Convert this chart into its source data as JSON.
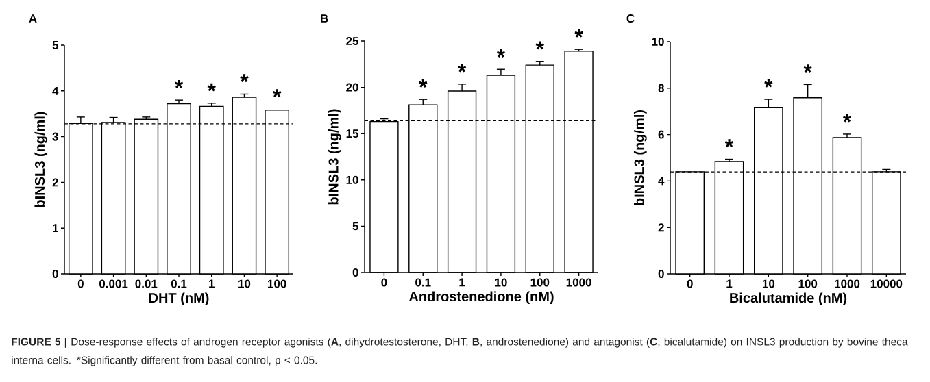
{
  "chart_data": [
    {
      "type": "bar",
      "title": "A",
      "xlabel": "DHT (nM)",
      "ylabel": "bINSL3 (ng/ml)",
      "categories": [
        "0",
        "0.001",
        "0.01",
        "0.1",
        "1",
        "10",
        "100"
      ],
      "values": [
        3.29,
        3.31,
        3.38,
        3.72,
        3.66,
        3.86,
        3.58
      ],
      "errors": [
        0.14,
        0.11,
        0.05,
        0.08,
        0.07,
        0.07,
        null
      ],
      "color": "#ffffff",
      "ylim": [
        0,
        5
      ],
      "yticks": [
        0,
        1,
        2,
        3,
        4,
        5
      ],
      "ref_lines": [
        {
          "axis": "y",
          "value": 3.28,
          "line_style": "dashed"
        }
      ],
      "annotations": [
        {
          "text": "*",
          "x": "0.1",
          "y": 3.8
        },
        {
          "text": "*",
          "x": "1",
          "y": 3.73
        },
        {
          "text": "*",
          "x": "10",
          "y": 3.93
        },
        {
          "text": "*",
          "x": "100",
          "y": 3.6
        }
      ]
    },
    {
      "type": "bar",
      "title": "B",
      "xlabel": "Androstenedione (nM)",
      "ylabel": "bINSL3 (ng/ml)",
      "categories": [
        "0",
        "0.1",
        "1",
        "10",
        "100",
        "1000"
      ],
      "values": [
        16.3,
        18.1,
        19.6,
        21.3,
        22.4,
        23.9
      ],
      "errors": [
        0.3,
        0.6,
        0.75,
        0.65,
        0.4,
        0.2
      ],
      "color": "#ffffff",
      "ylim": [
        0,
        25
      ],
      "yticks": [
        0,
        5,
        10,
        15,
        20,
        25
      ],
      "ref_lines": [
        {
          "axis": "y",
          "value": 16.4,
          "line_style": "dashed"
        }
      ],
      "annotations": [
        {
          "text": "*",
          "x": "0.1",
          "y": 18.7
        },
        {
          "text": "*",
          "x": "1",
          "y": 20.35
        },
        {
          "text": "*",
          "x": "10",
          "y": 21.95
        },
        {
          "text": "*",
          "x": "100",
          "y": 22.8
        },
        {
          "text": "*",
          "x": "1000",
          "y": 24.1
        }
      ]
    },
    {
      "type": "bar",
      "title": "C",
      "xlabel": "Bicalutamide (nM)",
      "ylabel": "bINSL3 (ng/ml)",
      "categories": [
        "0",
        "1",
        "10",
        "100",
        "1000",
        "10000"
      ],
      "values": [
        4.4,
        4.84,
        7.16,
        7.59,
        5.87,
        4.4
      ],
      "errors": [
        null,
        0.1,
        0.36,
        0.57,
        0.15,
        0.1
      ],
      "color": "#ffffff",
      "ylim": [
        0,
        10
      ],
      "yticks": [
        0,
        2,
        4,
        6,
        8,
        10
      ],
      "ref_lines": [
        {
          "axis": "y",
          "value": 4.39,
          "line_style": "dashed"
        }
      ],
      "annotations": [
        {
          "text": "*",
          "x": "1",
          "y": 4.94
        },
        {
          "text": "*",
          "x": "10",
          "y": 7.52
        },
        {
          "text": "*",
          "x": "100",
          "y": 8.16
        },
        {
          "text": "*",
          "x": "1000",
          "y": 6.02
        }
      ]
    },
    {
      "type": "other",
      "annotations": [
        "**FIGURE 5 |** Dose-response effects of androgen receptor agonists (**A**, dihydrotestosterone, DHT. **B**, androstenedione) and antagonist (**C**, bicalutamide) on INSL3 production by bovine theca interna cells. *Significantly different from basal control, p < 0.05."
      ]
    }
  ]
}
